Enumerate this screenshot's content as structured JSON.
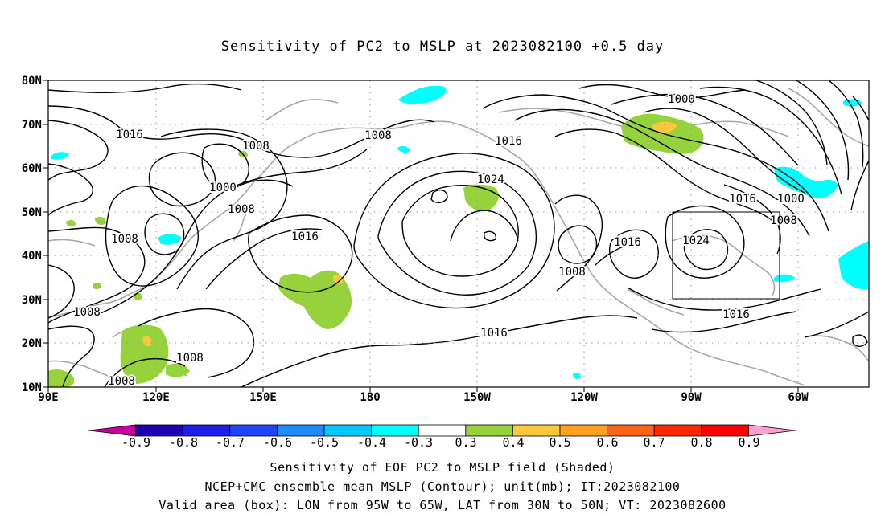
{
  "title": "Sensitivity of PC2 to MSLP at 2023082100 +0.5 day",
  "lat_ticks": [
    "80N",
    "70N",
    "60N",
    "50N",
    "40N",
    "30N",
    "20N",
    "10N"
  ],
  "lon_ticks": [
    "90E",
    "120E",
    "150E",
    "180",
    "150W",
    "120W",
    "90W",
    "60W"
  ],
  "colorbar": {
    "colors": [
      "#c800a0",
      "#1e00b4",
      "#1e1ee6",
      "#1e46ff",
      "#1e8cff",
      "#00c8ff",
      "#00ffff",
      "#ffffff",
      "#96d23c",
      "#ffc83c",
      "#ffa01e",
      "#ff6414",
      "#ff2800",
      "#ff0000",
      "#ffa0d2"
    ],
    "labels": [
      "-0.9",
      "-0.8",
      "-0.7",
      "-0.6",
      "-0.5",
      "-0.4",
      "-0.3",
      "0.3",
      "0.4",
      "0.5",
      "0.6",
      "0.7",
      "0.8",
      "0.9"
    ]
  },
  "contour_labels": [
    {
      "text": "1016"
    },
    {
      "text": "1008"
    },
    {
      "text": "1000"
    },
    {
      "text": "1008"
    },
    {
      "text": "1008"
    },
    {
      "text": "1016"
    },
    {
      "text": "1008"
    },
    {
      "text": "1008"
    },
    {
      "text": "1008"
    },
    {
      "text": "1008"
    },
    {
      "text": "1016"
    },
    {
      "text": "1024"
    },
    {
      "text": "1016"
    },
    {
      "text": "1000"
    },
    {
      "text": "1016"
    },
    {
      "text": "1000"
    },
    {
      "text": "1008"
    },
    {
      "text": "1016"
    },
    {
      "text": "1024"
    },
    {
      "text": "1008"
    },
    {
      "text": "1016"
    }
  ],
  "valid_box": {
    "lon_from": "95W",
    "lon_to": "65W",
    "lat_from": "30N",
    "lat_to": "50N"
  },
  "footer": {
    "line1": "Sensitivity of EOF PC2 to MSLP field (Shaded)",
    "line2": "NCEP+CMC ensemble mean MSLP (Contour); unit(mb); IT:2023082100",
    "line3": "Valid area (box): LON from 95W to 65W, LAT from 30N to 50N; VT: 2023082600"
  }
}
